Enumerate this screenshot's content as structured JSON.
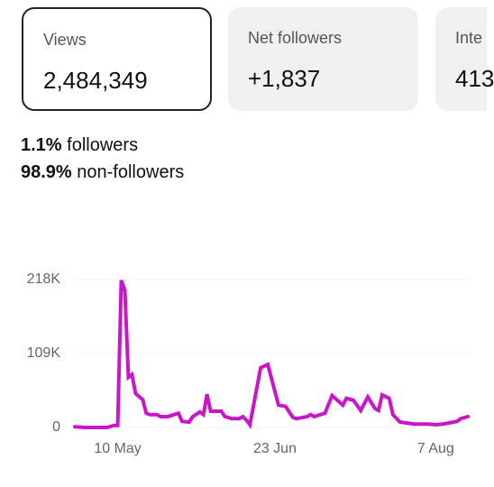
{
  "cards": [
    {
      "label": "Views",
      "value": "2,484,349"
    },
    {
      "label": "Net followers",
      "value": "+1,837"
    },
    {
      "label": "Inte",
      "value": "413"
    }
  ],
  "audience": [
    {
      "percent": "1.1%",
      "label": "followers"
    },
    {
      "percent": "98.9%",
      "label": "non-followers"
    }
  ],
  "chart_data": {
    "type": "line",
    "x": [
      0,
      3,
      7,
      9,
      11,
      12,
      13,
      14,
      15,
      16,
      17,
      19,
      20,
      21,
      23,
      24,
      26,
      29,
      30,
      32,
      33,
      35,
      36,
      37,
      38,
      41,
      42,
      44,
      46,
      47,
      48,
      49,
      52,
      54,
      57,
      59,
      61,
      62,
      65,
      66,
      67,
      70,
      72,
      75,
      76,
      78,
      80,
      82,
      84,
      85,
      86,
      88,
      89,
      91,
      95,
      99,
      101,
      103,
      105,
      107,
      108,
      110
    ],
    "values": [
      1000,
      0,
      0,
      0,
      3000,
      3000,
      217000,
      202000,
      74000,
      78000,
      50000,
      41000,
      21000,
      19000,
      19000,
      16000,
      16000,
      21000,
      9000,
      8000,
      16000,
      23000,
      19000,
      49000,
      24000,
      24000,
      16000,
      13000,
      13000,
      16000,
      11000,
      4000,
      88000,
      93000,
      33000,
      31000,
      15000,
      13000,
      16000,
      19000,
      16000,
      21000,
      47000,
      33000,
      43000,
      40000,
      25000,
      45000,
      28000,
      25000,
      48000,
      43000,
      19000,
      8000,
      5000,
      5000,
      4000,
      5000,
      7000,
      9000,
      13000,
      16000
    ],
    "color": "#c916c9",
    "xlim": [
      0,
      110
    ],
    "xticks": [
      {
        "value": 12,
        "label": "10 May"
      },
      {
        "value": 56,
        "label": "23 Jun"
      },
      {
        "value": 101,
        "label": "7 Aug"
      }
    ],
    "ylim": [
      0,
      218000
    ],
    "yticks": [
      0,
      {
        "value": 109000,
        "label": "109K"
      },
      {
        "value": 218000,
        "label": "218K"
      }
    ],
    "grid": true
  }
}
